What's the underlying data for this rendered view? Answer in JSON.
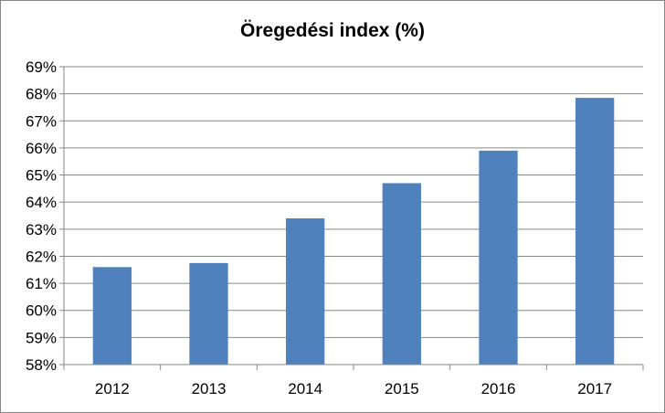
{
  "chart_data": {
    "type": "bar",
    "title": "Öregedési index (%)",
    "xlabel": "",
    "ylabel": "",
    "categories": [
      "2012",
      "2013",
      "2014",
      "2015",
      "2016",
      "2017"
    ],
    "values": [
      61.6,
      61.75,
      63.4,
      64.7,
      65.9,
      67.85
    ],
    "ylim": [
      58,
      69
    ],
    "yticks": [
      "58%",
      "59%",
      "60%",
      "61%",
      "62%",
      "63%",
      "64%",
      "65%",
      "66%",
      "67%",
      "68%",
      "69%"
    ],
    "grid": true,
    "legend": "none",
    "bar_color": "#4F81BD",
    "grid_color": "#868686"
  }
}
